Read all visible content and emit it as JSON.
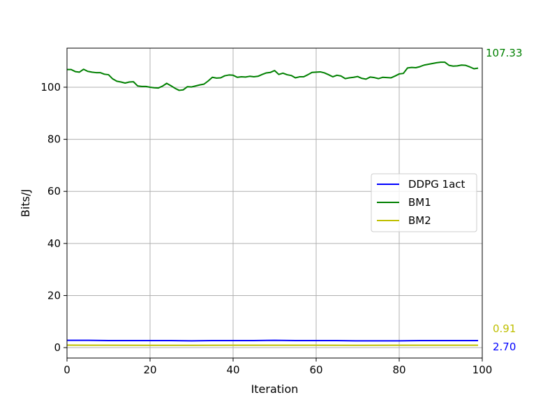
{
  "chart_data": {
    "type": "line",
    "title": "",
    "xlabel": "Iteration",
    "ylabel": "Bits/J",
    "xlim": [
      0,
      100
    ],
    "ylim": [
      -4,
      115
    ],
    "xticks": [
      0,
      20,
      40,
      60,
      80,
      100
    ],
    "yticks": [
      0,
      20,
      40,
      60,
      80,
      100
    ],
    "grid": true,
    "legend_position": "center-right",
    "series": [
      {
        "name": "DDPG 1act",
        "color": "#0000ff",
        "end_label": "2.70",
        "end_label_color": "#0000ff",
        "x": [
          0,
          5,
          10,
          15,
          20,
          25,
          30,
          35,
          40,
          45,
          50,
          55,
          60,
          65,
          70,
          75,
          80,
          85,
          90,
          95,
          99
        ],
        "y": [
          2.8,
          2.8,
          2.7,
          2.7,
          2.7,
          2.7,
          2.6,
          2.7,
          2.7,
          2.7,
          2.8,
          2.7,
          2.7,
          2.7,
          2.6,
          2.6,
          2.6,
          2.7,
          2.7,
          2.7,
          2.7
        ]
      },
      {
        "name": "BM1",
        "color": "#008000",
        "end_label": "107.33",
        "end_label_color": "#008000",
        "x": [
          0,
          1,
          2,
          3,
          4,
          5,
          6,
          7,
          8,
          9,
          10,
          11,
          12,
          13,
          14,
          15,
          16,
          17,
          18,
          19,
          20,
          21,
          22,
          23,
          24,
          25,
          26,
          27,
          28,
          29,
          30,
          31,
          32,
          33,
          34,
          35,
          36,
          37,
          38,
          39,
          40,
          41,
          42,
          43,
          44,
          45,
          46,
          47,
          48,
          49,
          50,
          51,
          52,
          53,
          54,
          55,
          56,
          57,
          58,
          59,
          60,
          61,
          62,
          63,
          64,
          65,
          66,
          67,
          68,
          69,
          70,
          71,
          72,
          73,
          74,
          75,
          76,
          77,
          78,
          79,
          80,
          81,
          82,
          83,
          84,
          85,
          86,
          87,
          88,
          89,
          90,
          91,
          92,
          93,
          94,
          95,
          96,
          97,
          98,
          99
        ],
        "y": [
          106.8,
          106.8,
          106.0,
          105.8,
          106.9,
          106.1,
          105.8,
          105.6,
          105.6,
          105.0,
          104.8,
          103.2,
          102.3,
          102.0,
          101.6,
          102.0,
          102.1,
          100.5,
          100.3,
          100.3,
          100.0,
          99.8,
          99.7,
          100.4,
          101.5,
          100.6,
          99.6,
          98.8,
          99.0,
          100.2,
          100.1,
          100.5,
          100.9,
          101.2,
          102.4,
          103.8,
          103.5,
          103.6,
          104.4,
          104.7,
          104.6,
          103.8,
          104.0,
          103.9,
          104.2,
          104.0,
          104.2,
          104.9,
          105.5,
          105.7,
          106.4,
          104.9,
          105.4,
          104.8,
          104.5,
          103.6,
          104.0,
          104.0,
          104.8,
          105.7,
          105.8,
          105.9,
          105.5,
          104.8,
          104.0,
          104.6,
          104.3,
          103.3,
          103.6,
          103.8,
          104.1,
          103.4,
          103.1,
          103.9,
          103.7,
          103.3,
          103.8,
          103.7,
          103.6,
          104.3,
          105.1,
          105.3,
          107.4,
          107.6,
          107.5,
          107.9,
          108.5,
          108.8,
          109.1,
          109.4,
          109.6,
          109.6,
          108.4,
          108.1,
          108.2,
          108.5,
          108.4,
          107.8,
          107.1,
          107.33
        ]
      },
      {
        "name": "BM2",
        "color": "#bfbf00",
        "end_label": "0.91",
        "end_label_color": "#bfbf00",
        "x": [
          0,
          10,
          20,
          30,
          40,
          50,
          60,
          70,
          80,
          90,
          99
        ],
        "y": [
          0.95,
          0.92,
          0.9,
          0.9,
          0.91,
          0.92,
          0.91,
          0.9,
          0.91,
          0.92,
          0.91
        ]
      }
    ]
  }
}
